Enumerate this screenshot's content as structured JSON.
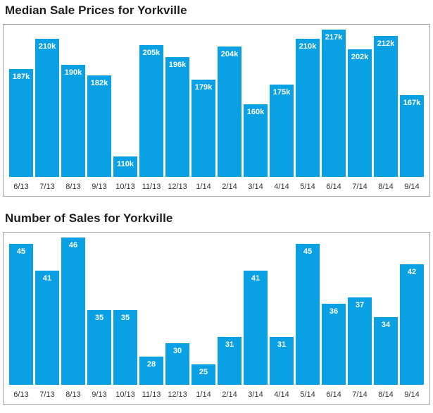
{
  "colors": {
    "bar": "#09a1e3",
    "bar_value_label": "#ffffff",
    "axis_label": "#333333",
    "title": "#1d1d1d",
    "panel_border": "#a3a3a3",
    "panel_background": "#ffffff"
  },
  "chart_data": [
    {
      "type": "bar",
      "title": "Median Sale Prices for Yorkville",
      "categories": [
        "6/13",
        "7/13",
        "8/13",
        "9/13",
        "10/13",
        "11/13",
        "12/13",
        "1/14",
        "2/14",
        "3/14",
        "4/14",
        "5/14",
        "6/14",
        "7/14",
        "8/14",
        "9/14"
      ],
      "values": [
        187,
        210,
        190,
        182,
        110,
        205,
        196,
        179,
        204,
        160,
        175,
        210,
        217,
        202,
        212,
        167
      ],
      "value_labels": [
        "187k",
        "210k",
        "190k",
        "182k",
        "110k",
        "205k",
        "196k",
        "179k",
        "204k",
        "160k",
        "175k",
        "210k",
        "217k",
        "202k",
        "212k",
        "167k"
      ],
      "xlabel": "",
      "ylabel": "",
      "grid": false,
      "legend": false,
      "value_label_position": "inside-top"
    },
    {
      "type": "bar",
      "title": "Number of Sales for Yorkville",
      "categories": [
        "6/13",
        "7/13",
        "8/13",
        "9/13",
        "10/13",
        "11/13",
        "12/13",
        "1/14",
        "2/14",
        "3/14",
        "4/14",
        "5/14",
        "6/14",
        "7/14",
        "8/14",
        "9/14"
      ],
      "values": [
        45,
        41,
        46,
        35,
        35,
        28,
        30,
        25,
        31,
        41,
        31,
        45,
        36,
        37,
        34,
        42
      ],
      "value_labels": [
        "45",
        "41",
        "46",
        "35",
        "35",
        "28",
        "30",
        "25",
        "31",
        "41",
        "31",
        "45",
        "36",
        "37",
        "34",
        "42"
      ],
      "xlabel": "",
      "ylabel": "",
      "grid": false,
      "legend": false,
      "value_label_position": "inside-top"
    }
  ]
}
